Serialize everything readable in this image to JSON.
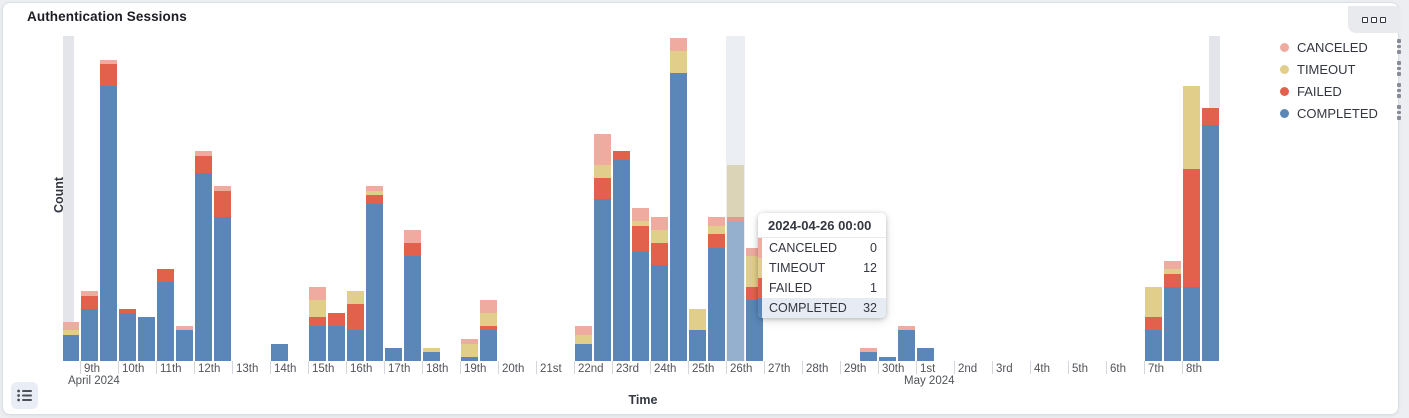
{
  "panel": {
    "title": "Authentication Sessions"
  },
  "toolbar": {
    "options_icon": "panel-options-boxes"
  },
  "axes": {
    "y_title": "Count",
    "x_title": "Time"
  },
  "x_axis": {
    "day_labels": [
      "9th",
      "10th",
      "11th",
      "12th",
      "13th",
      "14th",
      "15th",
      "16th",
      "17th",
      "18th",
      "19th",
      "20th",
      "21st",
      "22nd",
      "23rd",
      "24th",
      "25th",
      "26th",
      "27th",
      "28th",
      "29th",
      "30th",
      "1st",
      "2nd",
      "3rd",
      "4th",
      "5th",
      "6th",
      "7th",
      "8th"
    ],
    "month_labels": [
      {
        "text": "April 2024",
        "day_index": 0
      },
      {
        "text": "May 2024",
        "day_index": 22
      }
    ]
  },
  "legend": {
    "items": [
      {
        "label": "CANCELED",
        "color": "#F0ABA0"
      },
      {
        "label": "TIMEOUT",
        "color": "#E1CE8B"
      },
      {
        "label": "FAILED",
        "color": "#E2614D"
      },
      {
        "label": "COMPLETED",
        "color": "#5A87B8"
      }
    ]
  },
  "tooltip": {
    "header": "2024-04-26 00:00",
    "rows": [
      {
        "label": "CANCELED",
        "value": "0",
        "color": "#F0ABA0",
        "highlighted": false
      },
      {
        "label": "TIMEOUT",
        "value": "12",
        "color": "#E1CE8B",
        "highlighted": false
      },
      {
        "label": "FAILED",
        "value": "1",
        "color": "#E2614D",
        "highlighted": false
      },
      {
        "label": "COMPLETED",
        "value": "32",
        "color": "#5A87B8",
        "highlighted": true
      }
    ]
  },
  "chart_data": {
    "type": "bar",
    "stacked": true,
    "title": "Authentication Sessions",
    "xlabel": "Time",
    "ylabel": "Count",
    "x_start": "2024-04-08 12:00",
    "x_interval": "12h",
    "x_count": 61,
    "x_range_labels": [
      "April 2024 (9th-30th)",
      "May 2024 (1st-8th)"
    ],
    "legend_position": "right",
    "grid": false,
    "ylim": [
      0,
      74
    ],
    "series": [
      {
        "name": "COMPLETED",
        "color": "#5A87B8",
        "values": [
          6,
          12,
          63,
          11,
          10,
          18,
          7,
          43,
          33,
          0,
          0,
          4,
          0,
          8,
          8,
          7,
          36,
          3,
          24,
          2,
          0,
          1,
          7,
          0,
          0,
          0,
          0,
          4,
          37,
          46,
          25,
          22,
          66,
          7,
          26,
          32,
          14,
          0,
          0,
          0,
          0,
          0,
          2,
          1,
          7,
          3,
          0,
          0,
          0,
          0,
          0,
          0,
          0,
          0,
          0,
          0,
          0,
          7,
          17,
          17,
          54
        ]
      },
      {
        "name": "FAILED",
        "color": "#E2614D",
        "values": [
          0,
          3,
          5,
          1,
          0,
          3,
          0,
          4,
          6,
          0,
          0,
          0,
          0,
          2,
          3,
          6,
          2,
          0,
          3,
          0,
          0,
          0,
          1,
          0,
          0,
          0,
          0,
          0,
          5,
          2,
          6,
          5,
          0,
          0,
          3,
          1,
          3,
          0,
          0,
          0,
          0,
          0,
          0,
          0,
          0,
          0,
          0,
          0,
          0,
          0,
          0,
          0,
          0,
          0,
          0,
          0,
          0,
          3,
          3,
          27,
          4
        ]
      },
      {
        "name": "TIMEOUT",
        "color": "#E1CE8B",
        "values": [
          1,
          0,
          0,
          0,
          0,
          0,
          0,
          0,
          0,
          0,
          0,
          0,
          0,
          4,
          0,
          3,
          1,
          0,
          0,
          1,
          0,
          3,
          3,
          0,
          0,
          0,
          0,
          2,
          3,
          0,
          1,
          3,
          5,
          5,
          2,
          12,
          7,
          0,
          0,
          0,
          0,
          0,
          0,
          0,
          0,
          0,
          0,
          0,
          0,
          0,
          0,
          0,
          0,
          0,
          0,
          0,
          0,
          7,
          1,
          19,
          0
        ]
      },
      {
        "name": "CANCELED",
        "color": "#F0ABA0",
        "values": [
          2,
          1,
          1,
          0,
          0,
          0,
          1,
          1,
          1,
          0,
          0,
          0,
          0,
          3,
          0,
          0,
          1,
          0,
          3,
          0,
          0,
          1,
          3,
          0,
          0,
          0,
          0,
          2,
          7,
          0,
          3,
          3,
          3,
          0,
          2,
          0,
          2,
          0,
          0,
          0,
          0,
          0,
          1,
          0,
          1,
          0,
          0,
          0,
          0,
          0,
          0,
          0,
          0,
          0,
          0,
          0,
          0,
          0,
          2,
          0,
          0
        ]
      }
    ],
    "annotations": {
      "partial_buckets_indices": [
        0,
        60
      ],
      "hover_band_index": 35,
      "tooltip_index": 35
    }
  }
}
